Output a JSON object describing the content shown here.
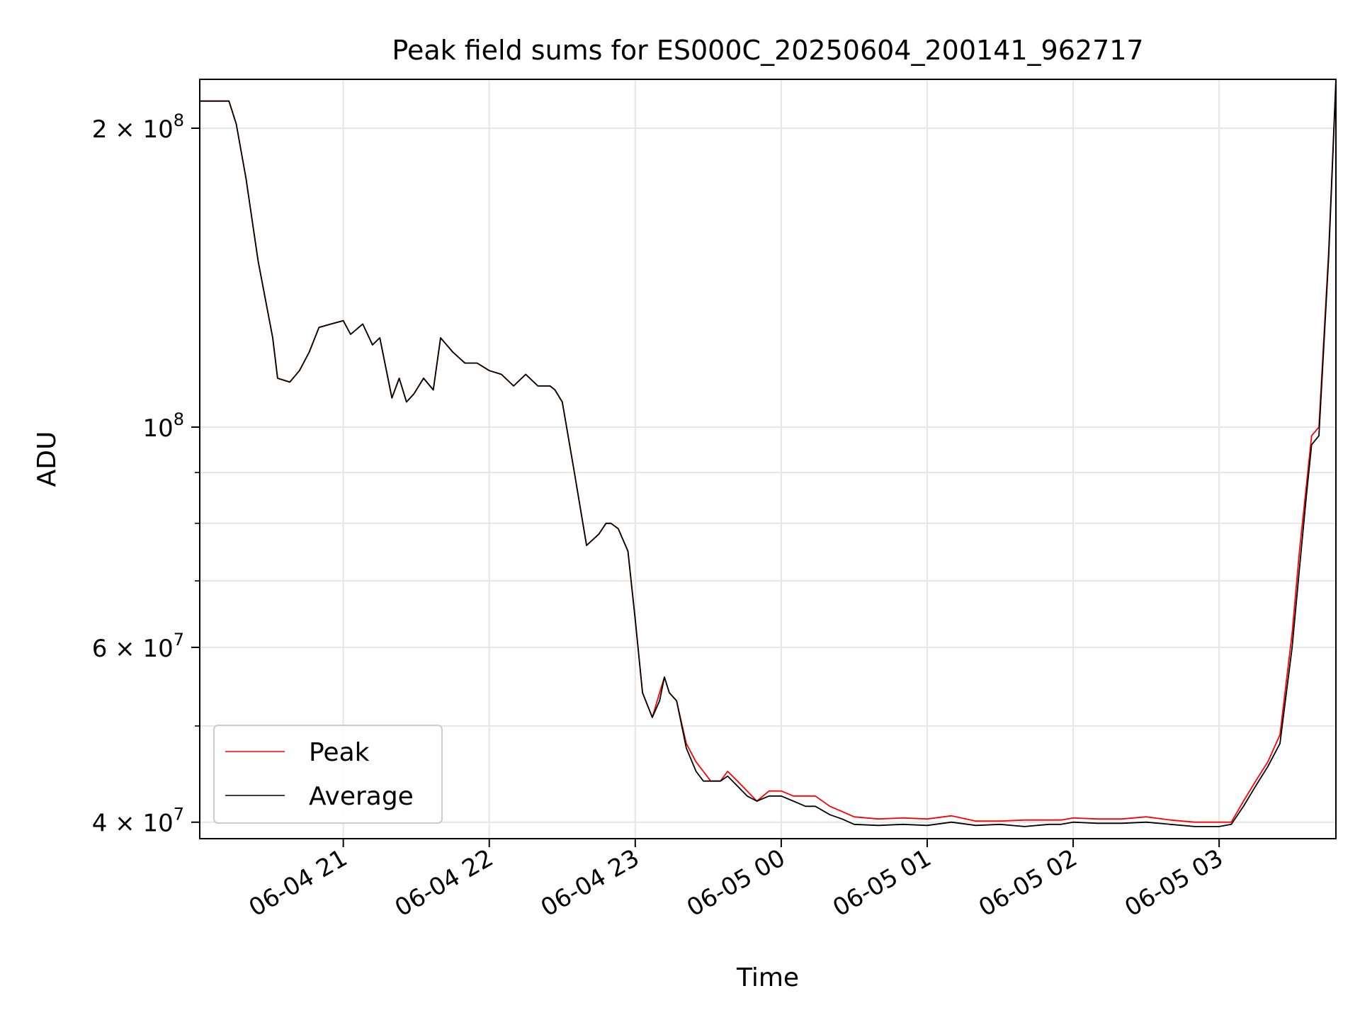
{
  "chart_data": {
    "type": "line",
    "title": "Peak field sums for ES000C_20250604_200141_962717",
    "xlabel": "Time",
    "ylabel": "ADU",
    "yscale": "log",
    "ylim": [
      38500000,
      224000000
    ],
    "xlim": [
      "06-04 20:01",
      "06-05 03:48"
    ],
    "grid": true,
    "legend": {
      "location": "lower-left"
    },
    "x_ticks": [
      {
        "value": "06-04 21:00",
        "label": "06-04 21"
      },
      {
        "value": "06-04 22:00",
        "label": "06-04 22"
      },
      {
        "value": "06-04 23:00",
        "label": "06-04 23"
      },
      {
        "value": "06-05 00:00",
        "label": "06-05 00"
      },
      {
        "value": "06-05 01:00",
        "label": "06-05 01"
      },
      {
        "value": "06-05 02:00",
        "label": "06-05 02"
      },
      {
        "value": "06-05 03:00",
        "label": "06-05 03"
      }
    ],
    "y_major_ticks": [
      {
        "value": 40000000,
        "base": "4 × 10",
        "exp": "7"
      },
      {
        "value": 60000000,
        "base": "6 × 10",
        "exp": "7"
      },
      {
        "value": 100000000,
        "base": "10",
        "exp": "8"
      },
      {
        "value": 200000000,
        "base": "2 × 10",
        "exp": "8"
      }
    ],
    "y_minor_ticks": [
      50000000,
      70000000,
      80000000,
      90000000
    ],
    "x": [
      "06-04 20:01",
      "06-04 20:08",
      "06-04 20:13",
      "06-04 20:16",
      "06-04 20:20",
      "06-04 20:25",
      "06-04 20:31",
      "06-04 20:33",
      "06-04 20:38",
      "06-04 20:42",
      "06-04 20:46",
      "06-04 20:50",
      "06-04 20:55",
      "06-04 21:00",
      "06-04 21:03",
      "06-04 21:08",
      "06-04 21:12",
      "06-04 21:15",
      "06-04 21:20",
      "06-04 21:23",
      "06-04 21:26",
      "06-04 21:29",
      "06-04 21:33",
      "06-04 21:37",
      "06-04 21:40",
      "06-04 21:45",
      "06-04 21:50",
      "06-04 21:55",
      "06-04 22:00",
      "06-04 22:05",
      "06-04 22:10",
      "06-04 22:15",
      "06-04 22:20",
      "06-04 22:25",
      "06-04 22:27",
      "06-04 22:30",
      "06-04 22:35",
      "06-04 22:40",
      "06-04 22:45",
      "06-04 22:48",
      "06-04 22:50",
      "06-04 22:53",
      "06-04 22:57",
      "06-04 23:00",
      "06-04 23:03",
      "06-04 23:07",
      "06-04 23:10",
      "06-04 23:12",
      "06-04 23:14",
      "06-04 23:17",
      "06-04 23:21",
      "06-04 23:25",
      "06-04 23:28",
      "06-04 23:31",
      "06-04 23:35",
      "06-04 23:38",
      "06-04 23:42",
      "06-04 23:46",
      "06-04 23:50",
      "06-04 23:55",
      "06-05 00:00",
      "06-05 00:05",
      "06-05 00:10",
      "06-05 00:14",
      "06-05 00:20",
      "06-05 00:25",
      "06-05 00:30",
      "06-05 00:40",
      "06-05 00:50",
      "06-05 01:00",
      "06-05 01:10",
      "06-05 01:20",
      "06-05 01:30",
      "06-05 01:40",
      "06-05 01:50",
      "06-05 01:55",
      "06-05 02:00",
      "06-05 02:10",
      "06-05 02:20",
      "06-05 02:30",
      "06-05 02:40",
      "06-05 02:50",
      "06-05 03:00",
      "06-05 03:05",
      "06-05 03:10",
      "06-05 03:15",
      "06-05 03:20",
      "06-05 03:25",
      "06-05 03:30",
      "06-05 03:33",
      "06-05 03:36",
      "06-05 03:38",
      "06-05 03:41",
      "06-05 03:45",
      "06-05 03:48"
    ],
    "series": [
      {
        "name": "Peak",
        "color": "#ff0000",
        "values": [
          213000000,
          213000000,
          213000000,
          202000000,
          178000000,
          147000000,
          123000000,
          112000000,
          111000000,
          114000000,
          119000000,
          126000000,
          127000000,
          128000000,
          124000000,
          127000000,
          121000000,
          123000000,
          107000000,
          112000000,
          106000000,
          108000000,
          112000000,
          109000000,
          123000000,
          119000000,
          116000000,
          116000000,
          114000000,
          113000000,
          110000000,
          113000000,
          110000000,
          110000000,
          109000000,
          106000000,
          90000000,
          76000000,
          78000000,
          80000000,
          80000000,
          79000000,
          75000000,
          64000000,
          54000000,
          51000000,
          54000000,
          56000000,
          54000000,
          53000000,
          48000000,
          46000000,
          45000000,
          44000000,
          44000000,
          45000000,
          44000000,
          43000000,
          42000000,
          43000000,
          43000000,
          42500000,
          42500000,
          42500000,
          41500000,
          41000000,
          40500000,
          40300000,
          40400000,
          40300000,
          40600000,
          40100000,
          40100000,
          40200000,
          40200000,
          40200000,
          40400000,
          40300000,
          40300000,
          40500000,
          40200000,
          40000000,
          40000000,
          40000000,
          42000000,
          44000000,
          46000000,
          49000000,
          62000000,
          75000000,
          88000000,
          98000000,
          100000000,
          150000000,
          224000000
        ]
      },
      {
        "name": "Average",
        "color": "#000000",
        "values": [
          213000000,
          213000000,
          213000000,
          202000000,
          178000000,
          147000000,
          123000000,
          112000000,
          111000000,
          114000000,
          119000000,
          126000000,
          127000000,
          128000000,
          124000000,
          127000000,
          121000000,
          123000000,
          107000000,
          112000000,
          106000000,
          108000000,
          112000000,
          109000000,
          123000000,
          119000000,
          116000000,
          116000000,
          114000000,
          113000000,
          110000000,
          113000000,
          110000000,
          110000000,
          109000000,
          106000000,
          90000000,
          76000000,
          78000000,
          80000000,
          80000000,
          79000000,
          75000000,
          64000000,
          54000000,
          51000000,
          53000000,
          56000000,
          54000000,
          53000000,
          47500000,
          45000000,
          44000000,
          44000000,
          44000000,
          44500000,
          43500000,
          42500000,
          42000000,
          42500000,
          42500000,
          42000000,
          41500000,
          41500000,
          40700000,
          40300000,
          39800000,
          39700000,
          39800000,
          39700000,
          40000000,
          39700000,
          39800000,
          39600000,
          39800000,
          39800000,
          40000000,
          39900000,
          39900000,
          40000000,
          39800000,
          39600000,
          39600000,
          39800000,
          41500000,
          43500000,
          45500000,
          48000000,
          60000000,
          72000000,
          86000000,
          96000000,
          98000000,
          148000000,
          223000000
        ]
      }
    ]
  }
}
